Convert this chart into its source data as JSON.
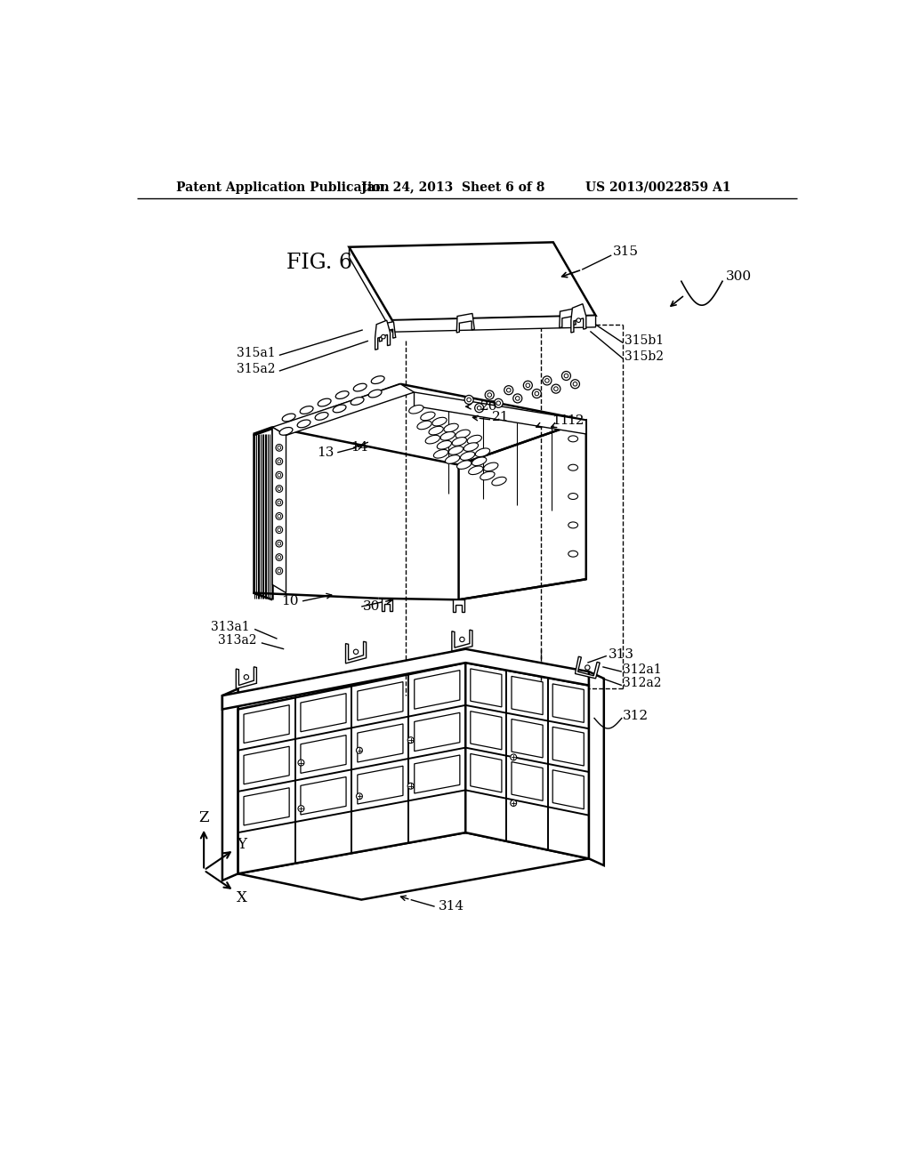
{
  "background_color": "#ffffff",
  "line_color": "#000000",
  "header_left": "Patent Application Publication",
  "header_center": "Jan. 24, 2013  Sheet 6 of 8",
  "header_right": "US 2013/0022859 A1",
  "fig_label": "FIG. 6",
  "ref_300": "300",
  "ref_315": "315",
  "ref_315a1": "315a1",
  "ref_315a2": "315a2",
  "ref_315b1": "315b1",
  "ref_315b2": "315b2",
  "ref_10": "10",
  "ref_11": "11",
  "ref_12": "12",
  "ref_13": "13",
  "ref_14": "14",
  "ref_20": "20",
  "ref_21": "21",
  "ref_30": "30",
  "ref_312": "312",
  "ref_312a1": "312a1",
  "ref_312a2": "312a2",
  "ref_313": "313",
  "ref_313a1": "313a1",
  "ref_313a2": "313a2",
  "ref_314": "314"
}
